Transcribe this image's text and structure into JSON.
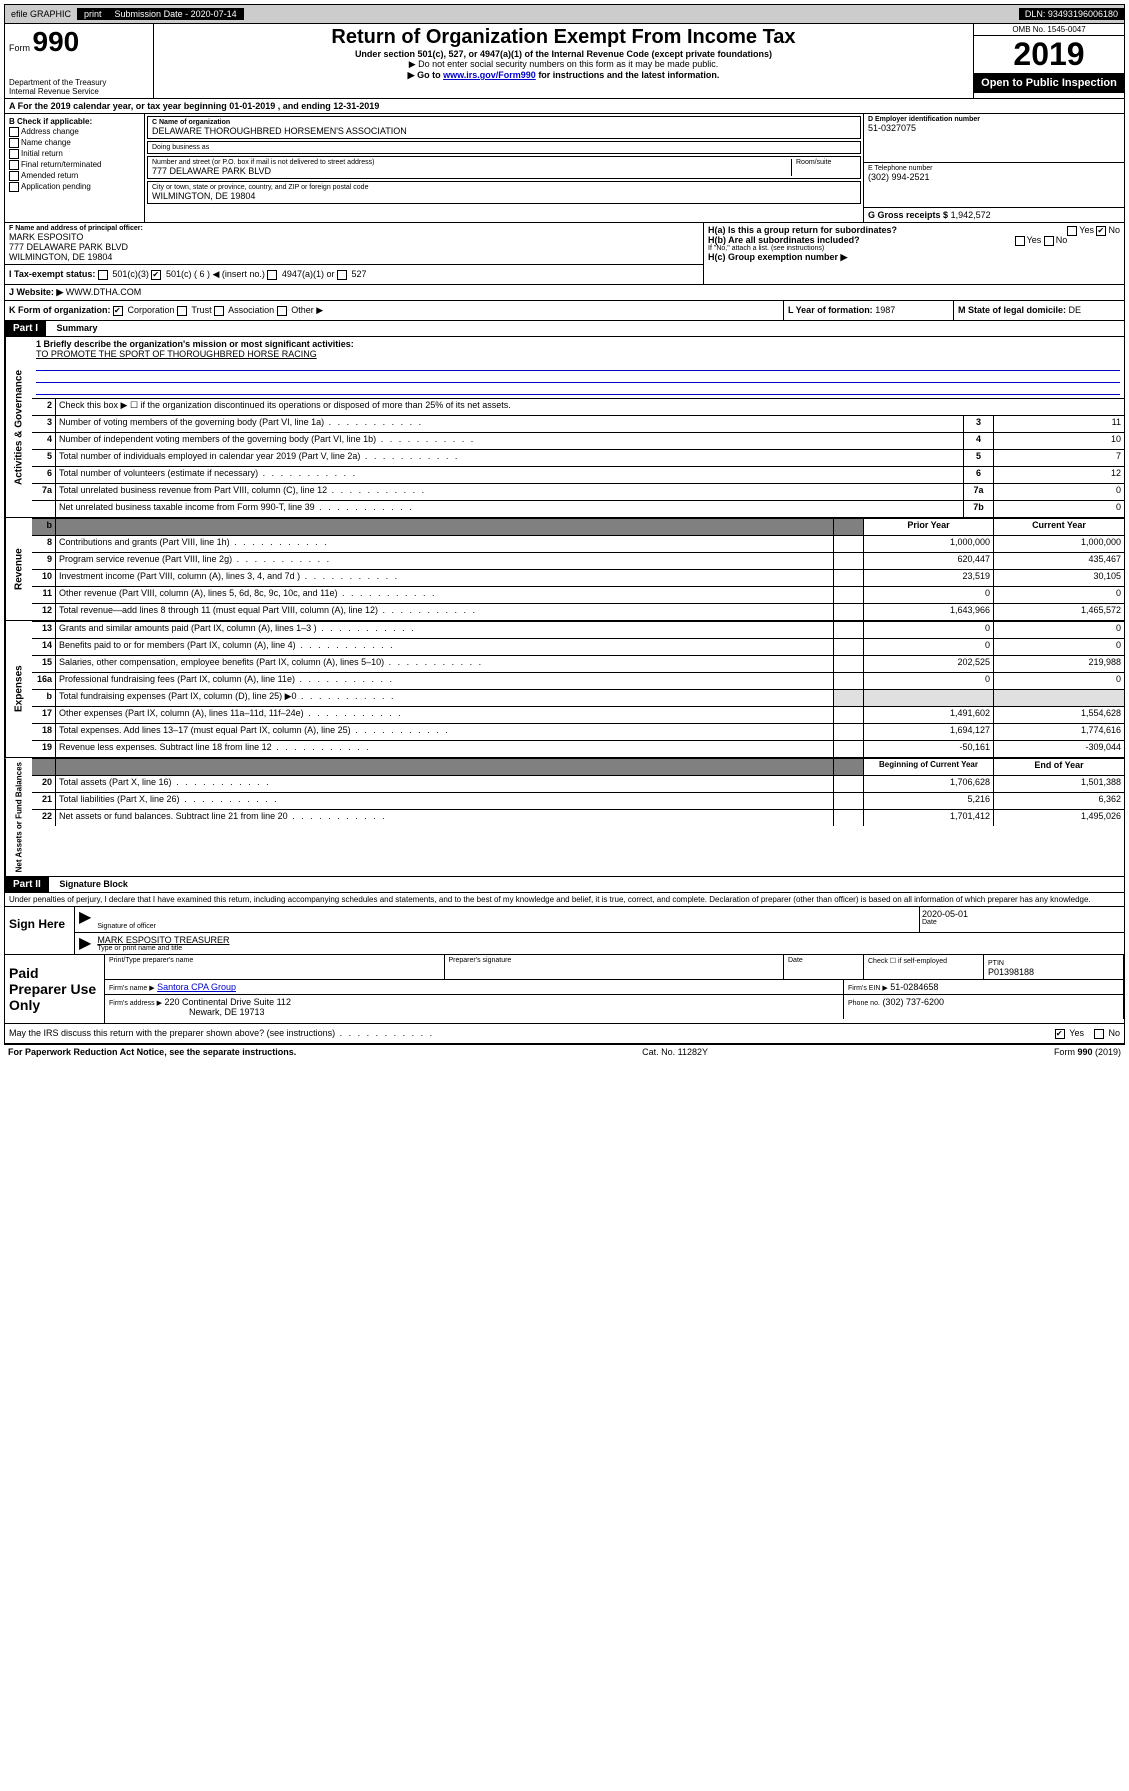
{
  "topbar": {
    "efile": "efile GRAPHIC",
    "print": "print",
    "submission_label": "Submission Date - 2020-07-14",
    "dln": "DLN: 93493196006180"
  },
  "header": {
    "form_label": "Form",
    "form_number": "990",
    "title": "Return of Organization Exempt From Income Tax",
    "subtitle1": "Under section 501(c), 527, or 4947(a)(1) of the Internal Revenue Code (except private foundations)",
    "subtitle2": "▶ Do not enter social security numbers on this form as it may be made public.",
    "subtitle3_pre": "▶ Go to ",
    "subtitle3_link": "www.irs.gov/Form990",
    "subtitle3_post": " for instructions and the latest information.",
    "dept": "Department of the Treasury\nInternal Revenue Service",
    "omb": "OMB No. 1545-0047",
    "year": "2019",
    "open": "Open to Public Inspection"
  },
  "section_a": "A For the 2019 calendar year, or tax year beginning 01-01-2019   , and ending 12-31-2019",
  "section_b": {
    "label": "B Check if applicable:",
    "items": [
      "Address change",
      "Name change",
      "Initial return",
      "Final return/terminated",
      "Amended return",
      "Application pending"
    ]
  },
  "section_c": {
    "name_label": "C Name of organization",
    "name": "DELAWARE THOROUGHBRED HORSEMEN'S ASSOCIATION",
    "dba_label": "Doing business as",
    "addr_label": "Number and street (or P.O. box if mail is not delivered to street address)",
    "room_label": "Room/suite",
    "addr": "777 DELAWARE PARK BLVD",
    "city_label": "City or town, state or province, country, and ZIP or foreign postal code",
    "city": "WILMINGTON, DE  19804"
  },
  "section_d": {
    "label": "D Employer identification number",
    "value": "51-0327075"
  },
  "section_e": {
    "label": "E Telephone number",
    "value": "(302) 994-2521"
  },
  "section_g": {
    "label": "G Gross receipts $",
    "value": "1,942,572"
  },
  "section_f": {
    "label": "F  Name and address of principal officer:",
    "name": "MARK ESPOSITO",
    "addr1": "777 DELAWARE PARK BLVD",
    "addr2": "WILMINGTON, DE  19804"
  },
  "section_h": {
    "ha": "H(a)  Is this a group return for subordinates?",
    "hb": "H(b)  Are all subordinates included?",
    "hb_note": "If \"No,\" attach a list. (see instructions)",
    "hc": "H(c)  Group exemption number ▶",
    "yes": "Yes",
    "no": "No"
  },
  "section_i": {
    "label": "I   Tax-exempt status:",
    "opt1": "501(c)(3)",
    "opt2": "501(c) ( 6 ) ◀ (insert no.)",
    "opt3": "4947(a)(1) or",
    "opt4": "527"
  },
  "section_j": {
    "label": "J   Website: ▶",
    "value": "WWW.DTHA.COM"
  },
  "section_k": {
    "label": "K Form of organization:",
    "opts": [
      "Corporation",
      "Trust",
      "Association",
      "Other ▶"
    ]
  },
  "section_l": {
    "label": "L Year of formation:",
    "value": "1987"
  },
  "section_m": {
    "label": "M State of legal domicile:",
    "value": "DE"
  },
  "part1": {
    "header": "Part I",
    "title": "Summary",
    "line1_label": "1  Briefly describe the organization's mission or most significant activities:",
    "line1_text": "TO PROMOTE THE SPORT OF THOROUGHBRED HORSE RACING",
    "line2": "Check this box ▶ ☐  if the organization discontinued its operations or disposed of more than 25% of its net assets.",
    "vlabels": {
      "gov": "Activities & Governance",
      "rev": "Revenue",
      "exp": "Expenses",
      "net": "Net Assets or Fund Balances"
    },
    "col_prior": "Prior Year",
    "col_current": "Current Year",
    "col_begin": "Beginning of Current Year",
    "col_end": "End of Year",
    "rows": [
      {
        "n": "3",
        "t": "Number of voting members of the governing body (Part VI, line 1a)",
        "box": "3",
        "v": "11"
      },
      {
        "n": "4",
        "t": "Number of independent voting members of the governing body (Part VI, line 1b)",
        "box": "4",
        "v": "10"
      },
      {
        "n": "5",
        "t": "Total number of individuals employed in calendar year 2019 (Part V, line 2a)",
        "box": "5",
        "v": "7"
      },
      {
        "n": "6",
        "t": "Total number of volunteers (estimate if necessary)",
        "box": "6",
        "v": "12"
      },
      {
        "n": "7a",
        "t": "Total unrelated business revenue from Part VIII, column (C), line 12",
        "box": "7a",
        "v": "0"
      },
      {
        "n": "",
        "t": "Net unrelated business taxable income from Form 990-T, line 39",
        "box": "7b",
        "v": "0"
      }
    ],
    "revenue": [
      {
        "n": "8",
        "t": "Contributions and grants (Part VIII, line 1h)",
        "p": "1,000,000",
        "c": "1,000,000"
      },
      {
        "n": "9",
        "t": "Program service revenue (Part VIII, line 2g)",
        "p": "620,447",
        "c": "435,467"
      },
      {
        "n": "10",
        "t": "Investment income (Part VIII, column (A), lines 3, 4, and 7d )",
        "p": "23,519",
        "c": "30,105"
      },
      {
        "n": "11",
        "t": "Other revenue (Part VIII, column (A), lines 5, 6d, 8c, 9c, 10c, and 11e)",
        "p": "0",
        "c": "0"
      },
      {
        "n": "12",
        "t": "Total revenue—add lines 8 through 11 (must equal Part VIII, column (A), line 12)",
        "p": "1,643,966",
        "c": "1,465,572"
      }
    ],
    "expenses": [
      {
        "n": "13",
        "t": "Grants and similar amounts paid (Part IX, column (A), lines 1–3 )",
        "p": "0",
        "c": "0"
      },
      {
        "n": "14",
        "t": "Benefits paid to or for members (Part IX, column (A), line 4)",
        "p": "0",
        "c": "0"
      },
      {
        "n": "15",
        "t": "Salaries, other compensation, employee benefits (Part IX, column (A), lines 5–10)",
        "p": "202,525",
        "c": "219,988"
      },
      {
        "n": "16a",
        "t": "Professional fundraising fees (Part IX, column (A), line 11e)",
        "p": "0",
        "c": "0"
      },
      {
        "n": "b",
        "t": "Total fundraising expenses (Part IX, column (D), line 25) ▶0",
        "p": "",
        "c": "",
        "shade": true
      },
      {
        "n": "17",
        "t": "Other expenses (Part IX, column (A), lines 11a–11d, 11f–24e)",
        "p": "1,491,602",
        "c": "1,554,628"
      },
      {
        "n": "18",
        "t": "Total expenses. Add lines 13–17 (must equal Part IX, column (A), line 25)",
        "p": "1,694,127",
        "c": "1,774,616"
      },
      {
        "n": "19",
        "t": "Revenue less expenses. Subtract line 18 from line 12",
        "p": "-50,161",
        "c": "-309,044"
      }
    ],
    "netassets": [
      {
        "n": "20",
        "t": "Total assets (Part X, line 16)",
        "p": "1,706,628",
        "c": "1,501,388"
      },
      {
        "n": "21",
        "t": "Total liabilities (Part X, line 26)",
        "p": "5,216",
        "c": "6,362"
      },
      {
        "n": "22",
        "t": "Net assets or fund balances. Subtract line 21 from line 20",
        "p": "1,701,412",
        "c": "1,495,026"
      }
    ]
  },
  "part2": {
    "header": "Part II",
    "title": "Signature Block",
    "perjury": "Under penalties of perjury, I declare that I have examined this return, including accompanying schedules and statements, and to the best of my knowledge and belief, it is true, correct, and complete. Declaration of preparer (other than officer) is based on all information of which preparer has any knowledge.",
    "sign_here": "Sign Here",
    "sig_officer": "Signature of officer",
    "date_label": "Date",
    "date": "2020-05-01",
    "name_title": "MARK ESPOSITO  TREASURER",
    "type_name": "Type or print name and title",
    "paid": "Paid Preparer Use Only",
    "prep_name_label": "Print/Type preparer's name",
    "prep_sig_label": "Preparer's signature",
    "check_label": "Check ☐ if self-employed",
    "ptin_label": "PTIN",
    "ptin": "P01398188",
    "firm_name_label": "Firm's name    ▶",
    "firm_name": "Santora CPA Group",
    "firm_ein_label": "Firm's EIN ▶",
    "firm_ein": "51-0284658",
    "firm_addr_label": "Firm's address ▶",
    "firm_addr1": "220 Continental Drive Suite 112",
    "firm_addr2": "Newark, DE  19713",
    "phone_label": "Phone no.",
    "phone": "(302) 737-6200",
    "discuss": "May the IRS discuss this return with the preparer shown above? (see instructions)",
    "yes": "Yes",
    "no": "No"
  },
  "footer": {
    "left": "For Paperwork Reduction Act Notice, see the separate instructions.",
    "mid": "Cat. No. 11282Y",
    "right": "Form 990 (2019)"
  }
}
